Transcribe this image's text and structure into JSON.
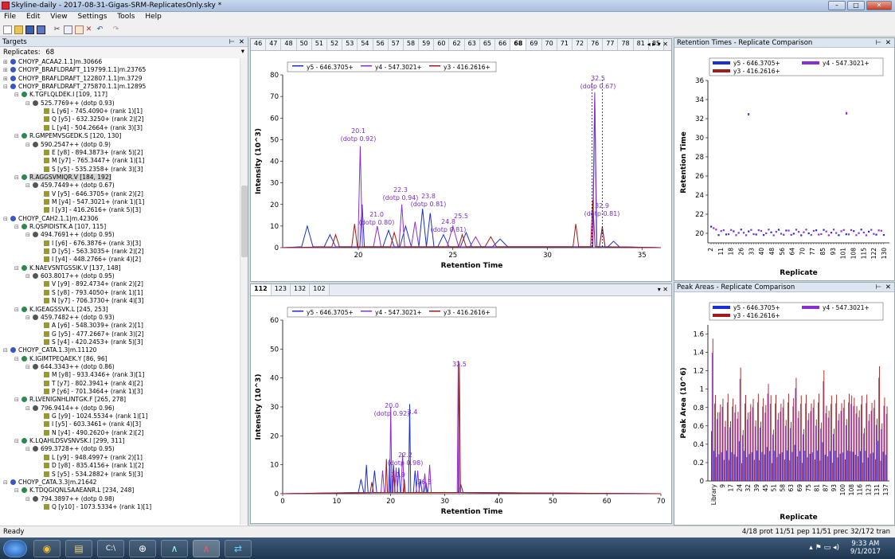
{
  "window": {
    "title": "Skyline-daily - 2017-08-31-Gigas-SRM-ReplicatesOnly.sky *"
  },
  "menu": [
    "File",
    "Edit",
    "View",
    "Settings",
    "Tools",
    "Help"
  ],
  "toolbar_icons": [
    "new-icon",
    "open-icon",
    "save-icon",
    "save-all-icon",
    "cut-icon",
    "copy-icon",
    "paste-icon",
    "delete-icon",
    "undo-icon",
    "redo-icon"
  ],
  "targets": {
    "title": "Targets",
    "replicates_label": "Replicates:",
    "replicates_value": "68",
    "tree": [
      {
        "level": 0,
        "type": "protein",
        "text": "CHOYP_ACAA2.1.1|m.30666"
      },
      {
        "level": 0,
        "type": "protein",
        "text": "CHOYP_BRAFLDRAFT_119799.1.1|m.23765"
      },
      {
        "level": 0,
        "type": "protein",
        "text": "CHOYP_BRAFLDRAFT_122807.1.1|m.3729"
      },
      {
        "level": 0,
        "type": "protein",
        "text": "CHOYP_BRAFLDRAFT_275870.1.1|m.12895"
      },
      {
        "level": 1,
        "type": "peptide",
        "text": "K.TGFLQLDEK.I [109, 117]"
      },
      {
        "level": 2,
        "type": "precursor",
        "text": "525.7769++ (dotp 0.93)"
      },
      {
        "level": 3,
        "type": "transition",
        "text": "L [y6] - 745.4090+ (rank 1)[1]"
      },
      {
        "level": 3,
        "type": "transition",
        "text": "Q [y5] - 632.3250+ (rank 2)[2]"
      },
      {
        "level": 3,
        "type": "transition",
        "text": "L [y4] - 504.2664+ (rank 3)[3]"
      },
      {
        "level": 1,
        "type": "peptide",
        "text": "R.GMPEMVSGEDK.S [120, 130]"
      },
      {
        "level": 2,
        "type": "precursor",
        "text": "590.2547++ (dotp 0.9)"
      },
      {
        "level": 3,
        "type": "transition",
        "text": "E [y8] - 894.3873+ (rank 5)[2]"
      },
      {
        "level": 3,
        "type": "transition",
        "text": "M [y7] - 765.3447+ (rank 1)[1]"
      },
      {
        "level": 3,
        "type": "transition",
        "text": "S [y5] - 535.2358+ (rank 3)[3]"
      },
      {
        "level": 1,
        "type": "peptide",
        "text": "R.AGGSVMIQR.V [184, 192]",
        "selected": true
      },
      {
        "level": 2,
        "type": "precursor",
        "text": "459.7449++ (dotp 0.67)"
      },
      {
        "level": 3,
        "type": "transition",
        "text": "V [y5] - 646.3705+ (rank 2)[2]"
      },
      {
        "level": 3,
        "type": "transition",
        "text": "M [y4] - 547.3021+ (rank 1)[1]"
      },
      {
        "level": 3,
        "type": "transition",
        "text": "I [y3] - 416.2616+ (rank 5)[3]"
      },
      {
        "level": 0,
        "type": "protein",
        "text": "CHOYP_CAH2.1.1|m.42306"
      },
      {
        "level": 1,
        "type": "peptide",
        "text": "R.QSPIDISTK.A [107, 115]"
      },
      {
        "level": 2,
        "type": "precursor",
        "text": "494.7691++ (dotp 0.95)"
      },
      {
        "level": 3,
        "type": "transition",
        "text": "I [y6] - 676.3876+ (rank 3)[3]"
      },
      {
        "level": 3,
        "type": "transition",
        "text": "D [y5] - 563.3035+ (rank 2)[2]"
      },
      {
        "level": 3,
        "type": "transition",
        "text": "I [y4] - 448.2766+ (rank 4)[2]"
      },
      {
        "level": 1,
        "type": "peptide",
        "text": "K.NAEVSNTGSSIK.V [137, 148]"
      },
      {
        "level": 2,
        "type": "precursor",
        "text": "603.8017++ (dotp 0.95)"
      },
      {
        "level": 3,
        "type": "transition",
        "text": "V [y9] - 892.4734+ (rank 2)[2]"
      },
      {
        "level": 3,
        "type": "transition",
        "text": "S [y8] - 793.4050+ (rank 1)[1]"
      },
      {
        "level": 3,
        "type": "transition",
        "text": "N [y7] - 706.3730+ (rank 4)[3]"
      },
      {
        "level": 1,
        "type": "peptide",
        "text": "K.IGEAGSSVK.L [245, 253]"
      },
      {
        "level": 2,
        "type": "precursor",
        "text": "459.7482++ (dotp 0.93)"
      },
      {
        "level": 3,
        "type": "transition",
        "text": "A [y6] - 548.3039+ (rank 2)[1]"
      },
      {
        "level": 3,
        "type": "transition",
        "text": "G [y5] - 477.2667+ (rank 3)[2]"
      },
      {
        "level": 3,
        "type": "transition",
        "text": "S [y4] - 420.2453+ (rank 5)[3]"
      },
      {
        "level": 0,
        "type": "protein",
        "text": "CHOYP_CATA.1.3|m.11120"
      },
      {
        "level": 1,
        "type": "peptide",
        "text": "K.IGIMTPEQAEK.Y [86, 96]"
      },
      {
        "level": 2,
        "type": "precursor",
        "text": "644.3343++ (dotp 0.86)"
      },
      {
        "level": 3,
        "type": "transition",
        "text": "M [y8] - 933.4346+ (rank 3)[1]"
      },
      {
        "level": 3,
        "type": "transition",
        "text": "T [y7] - 802.3941+ (rank 4)[2]"
      },
      {
        "level": 3,
        "type": "transition",
        "text": "P [y6] - 701.3464+ (rank 1)[3]"
      },
      {
        "level": 1,
        "type": "peptide",
        "text": "R.LVENIGNHLINTGK.F [265, 278]"
      },
      {
        "level": 2,
        "type": "precursor",
        "text": "796.9414++ (dotp 0.96)"
      },
      {
        "level": 3,
        "type": "transition",
        "text": "G [y9] - 1024.5534+ (rank 1)[1]"
      },
      {
        "level": 3,
        "type": "transition",
        "text": "I [y5] - 603.3461+ (rank 4)[3]"
      },
      {
        "level": 3,
        "type": "transition",
        "text": "N [y4] - 490.2620+ (rank 2)[2]"
      },
      {
        "level": 1,
        "type": "peptide",
        "text": "K.LQAHLDSVSNVSK.I [299, 311]"
      },
      {
        "level": 2,
        "type": "precursor",
        "text": "699.3728++ (dotp 0.95)"
      },
      {
        "level": 3,
        "type": "transition",
        "text": "L [y9] - 948.4997+ (rank 2)[1]"
      },
      {
        "level": 3,
        "type": "transition",
        "text": "D [y8] - 835.4156+ (rank 1)[2]"
      },
      {
        "level": 3,
        "type": "transition",
        "text": "S [y5] - 534.2882+ (rank 5)[3]"
      },
      {
        "level": 0,
        "type": "protein",
        "text": "CHOYP_CATA.3.3|m.21642"
      },
      {
        "level": 1,
        "type": "peptide",
        "text": "K.TDQGIQNLSAAEANR.L [234, 248]"
      },
      {
        "level": 2,
        "type": "precursor",
        "text": "794.3897++ (dotp 0.98)"
      },
      {
        "level": 3,
        "type": "transition",
        "text": "Q [y10] - 1073.5334+ (rank 1)[1]"
      }
    ]
  },
  "top_chrom": {
    "tabs": [
      "46",
      "47",
      "48",
      "50",
      "51",
      "52",
      "53",
      "54",
      "56",
      "57",
      "58",
      "59",
      "60",
      "62",
      "63",
      "65",
      "66",
      "68",
      "69",
      "70",
      "71",
      "72",
      "76",
      "77",
      "78",
      "81",
      "85"
    ],
    "active_tab": "68",
    "legend": [
      "y5 - 646.3705+",
      "y4 - 547.3021+",
      "y3 - 416.2616+"
    ],
    "ylabel": "Intensity (10^3)",
    "xlabel": "Retention Time",
    "yticks": [
      "80",
      "70",
      "60",
      "50",
      "40",
      "30",
      "20",
      "10",
      "0"
    ],
    "xticks": [
      "20",
      "25",
      "30",
      "35"
    ],
    "annotations": [
      "32.5",
      "(dotp 0.67)",
      "20.1",
      "(dotp 0.92)",
      "22.3",
      "(dotp 0.94)",
      "23.8",
      "(dotp 0.81)",
      "21.0",
      "(dotp 0.80)",
      "24.8",
      "(dotp 0.81)",
      "25.5",
      "32.9",
      "(dotp 0.81)"
    ]
  },
  "bottom_chrom": {
    "tabs": [
      "112",
      "123",
      "132",
      "102"
    ],
    "active_tab": "112",
    "legend": [
      "y5 - 646.3705+",
      "y4 - 547.3021+",
      "y3 - 416.2616+"
    ],
    "ylabel": "Intensity (10^3)",
    "xlabel": "Retention Time",
    "yticks": [
      "60",
      "50",
      "40",
      "30",
      "20",
      "10",
      "0"
    ],
    "xticks": [
      "0",
      "10",
      "20",
      "30",
      "40",
      "50",
      "60",
      "70"
    ],
    "annotations": [
      "32.5",
      "20.0",
      "(dotp 0.92)",
      "3.4",
      "22.2",
      "(dotp 0.98)",
      "20.9",
      "26.3"
    ]
  },
  "rt_panel": {
    "title": "Retention Times - Replicate Comparison",
    "legend": [
      "y5 - 646.3705+",
      "y4 - 547.3021+",
      "y3 - 416.2616+"
    ],
    "ylabel": "Retention Time",
    "xlabel": "Replicate",
    "yticks": [
      "36",
      "34",
      "32",
      "30",
      "28",
      "26",
      "24",
      "22",
      "20"
    ],
    "xticks": [
      "2",
      "11",
      "18",
      "26",
      "33",
      "40",
      "48",
      "56",
      "64",
      "70",
      "77",
      "85",
      "93",
      "101",
      "108",
      "115",
      "122",
      "130"
    ]
  },
  "area_panel": {
    "title": "Peak Areas - Replicate Comparison",
    "legend": [
      "y5 - 646.3705+",
      "y4 - 547.3021+",
      "y3 - 416.2616+"
    ],
    "ylabel": "Peak Area (10^6)",
    "xlabel": "Replicate",
    "yticks": [
      "1.6",
      "1.4",
      "1.2",
      "1",
      "0.8",
      "0.6",
      "0.4",
      "0.2",
      "0"
    ],
    "xticks": [
      "Library",
      "9",
      "17",
      "24",
      "32",
      "39",
      "45",
      "51",
      "58",
      "63",
      "69",
      "75",
      "81",
      "87",
      "93",
      "100",
      "108",
      "116",
      "123",
      "131",
      "137"
    ]
  },
  "colors": {
    "y5": "#1a2fd6",
    "y4": "#8a2fd0",
    "y3": "#a01c1c"
  },
  "status": {
    "left": "Ready",
    "right": "4/18 prot  11/51 pep  11/51 prec  32/172 tran"
  },
  "taskbar": {
    "time": "9:33 AM",
    "date": "9/1/2017",
    "apps": [
      "start-orb-icon",
      "chrome-icon",
      "file-explorer-icon",
      "command-prompt-icon",
      "network-icon",
      "skyline-icon",
      "skyline-daily-icon",
      "teamviewer-icon"
    ]
  }
}
